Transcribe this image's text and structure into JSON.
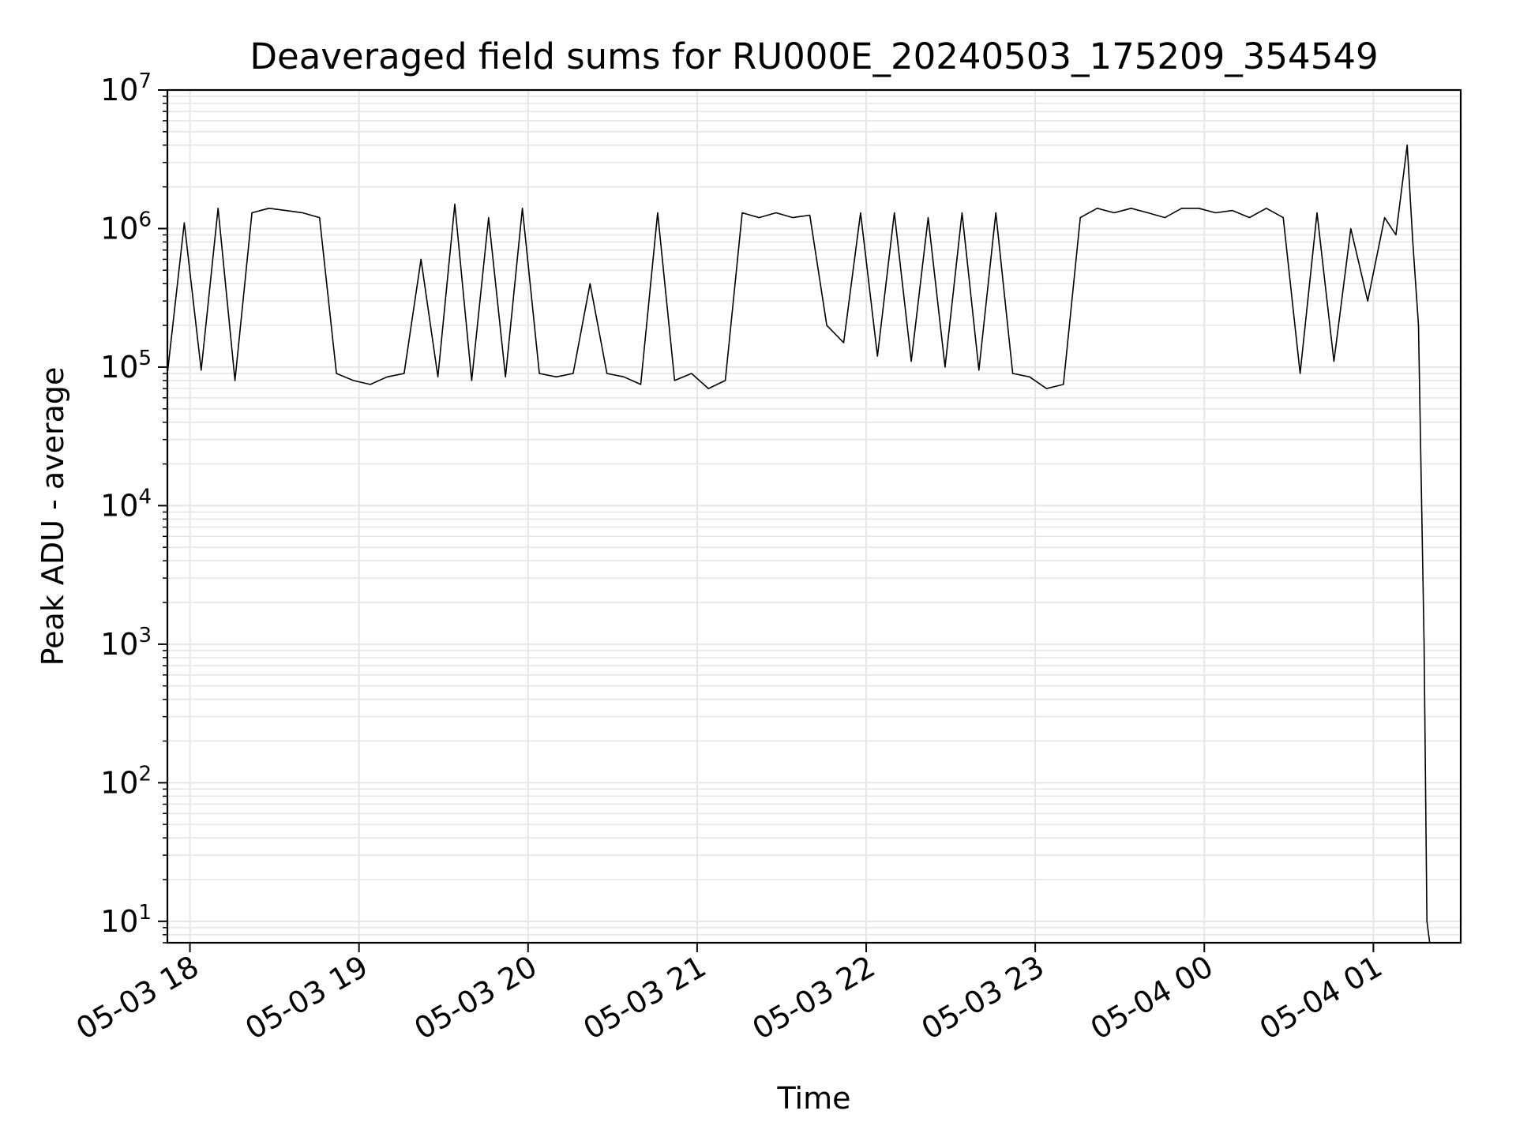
{
  "chart_data": {
    "type": "line",
    "title": "Deaveraged field sums for RU000E_20240503_175209_354549",
    "xlabel": "Time",
    "ylabel": "Peak ADU - average",
    "yscale": "log",
    "ylim": [
      7,
      10000000
    ],
    "xlim": [
      "2024-05-03 17:52",
      "2024-05-04 01:31"
    ],
    "grid": true,
    "line_color": "#000000",
    "x_ticks": [
      {
        "value": "2024-05-03 18:00",
        "label": "05-03 18"
      },
      {
        "value": "2024-05-03 19:00",
        "label": "05-03 19"
      },
      {
        "value": "2024-05-03 20:00",
        "label": "05-03 20"
      },
      {
        "value": "2024-05-03 21:00",
        "label": "05-03 21"
      },
      {
        "value": "2024-05-03 22:00",
        "label": "05-03 22"
      },
      {
        "value": "2024-05-03 23:00",
        "label": "05-03 23"
      },
      {
        "value": "2024-05-04 00:00",
        "label": "05-04 00"
      },
      {
        "value": "2024-05-04 01:00",
        "label": "05-04 01"
      }
    ],
    "y_ticks": [
      {
        "value": 10,
        "base": "10",
        "exp": "1"
      },
      {
        "value": 100,
        "base": "10",
        "exp": "2"
      },
      {
        "value": 1000,
        "base": "10",
        "exp": "3"
      },
      {
        "value": 10000,
        "base": "10",
        "exp": "4"
      },
      {
        "value": 100000,
        "base": "10",
        "exp": "5"
      },
      {
        "value": 1000000,
        "base": "10",
        "exp": "6"
      },
      {
        "value": 10000000,
        "base": "10",
        "exp": "7"
      }
    ],
    "series": [
      {
        "x": [
          "2024-05-03 17:52",
          "2024-05-03 17:58",
          "2024-05-03 18:04",
          "2024-05-03 18:10",
          "2024-05-03 18:16",
          "2024-05-03 18:22",
          "2024-05-03 18:28",
          "2024-05-03 18:34",
          "2024-05-03 18:40",
          "2024-05-03 18:46",
          "2024-05-03 18:52",
          "2024-05-03 18:58",
          "2024-05-03 19:04",
          "2024-05-03 19:10",
          "2024-05-03 19:16",
          "2024-05-03 19:22",
          "2024-05-03 19:28",
          "2024-05-03 19:34",
          "2024-05-03 19:40",
          "2024-05-03 19:46",
          "2024-05-03 19:52",
          "2024-05-03 19:58",
          "2024-05-03 20:04",
          "2024-05-03 20:10",
          "2024-05-03 20:16",
          "2024-05-03 20:22",
          "2024-05-03 20:28",
          "2024-05-03 20:34",
          "2024-05-03 20:40",
          "2024-05-03 20:46",
          "2024-05-03 20:52",
          "2024-05-03 20:58",
          "2024-05-03 21:04",
          "2024-05-03 21:10",
          "2024-05-03 21:16",
          "2024-05-03 21:22",
          "2024-05-03 21:28",
          "2024-05-03 21:34",
          "2024-05-03 21:40",
          "2024-05-03 21:46",
          "2024-05-03 21:52",
          "2024-05-03 21:58",
          "2024-05-03 22:04",
          "2024-05-03 22:10",
          "2024-05-03 22:16",
          "2024-05-03 22:22",
          "2024-05-03 22:28",
          "2024-05-03 22:34",
          "2024-05-03 22:40",
          "2024-05-03 22:46",
          "2024-05-03 22:52",
          "2024-05-03 22:58",
          "2024-05-03 23:04",
          "2024-05-03 23:10",
          "2024-05-03 23:16",
          "2024-05-03 23:22",
          "2024-05-03 23:28",
          "2024-05-03 23:34",
          "2024-05-03 23:40",
          "2024-05-03 23:46",
          "2024-05-03 23:52",
          "2024-05-03 23:58",
          "2024-05-04 00:04",
          "2024-05-04 00:10",
          "2024-05-04 00:16",
          "2024-05-04 00:22",
          "2024-05-04 00:28",
          "2024-05-04 00:34",
          "2024-05-04 00:40",
          "2024-05-04 00:46",
          "2024-05-04 00:52",
          "2024-05-04 00:58",
          "2024-05-04 01:04",
          "2024-05-04 01:08",
          "2024-05-04 01:12",
          "2024-05-04 01:14",
          "2024-05-04 01:16",
          "2024-05-04 01:18",
          "2024-05-04 01:19",
          "2024-05-04 01:20"
        ],
        "y": [
          90000,
          1100000,
          95000,
          1400000,
          80000,
          1300000,
          1400000,
          1350000,
          1300000,
          1200000,
          90000,
          80000,
          75000,
          85000,
          90000,
          600000,
          85000,
          1500000,
          80000,
          1200000,
          85000,
          1400000,
          90000,
          85000,
          90000,
          400000,
          90000,
          85000,
          75000,
          1300000,
          80000,
          90000,
          70000,
          80000,
          1300000,
          1200000,
          1300000,
          1200000,
          1250000,
          200000,
          150000,
          1300000,
          120000,
          1300000,
          110000,
          1200000,
          100000,
          1300000,
          95000,
          1300000,
          90000,
          85000,
          70000,
          75000,
          1200000,
          1400000,
          1300000,
          1400000,
          1300000,
          1200000,
          1400000,
          1400000,
          1300000,
          1350000,
          1200000,
          1400000,
          1200000,
          90000,
          1300000,
          110000,
          1000000,
          300000,
          1200000,
          900000,
          4000000,
          800000,
          200000,
          1000,
          10,
          7
        ]
      }
    ]
  }
}
